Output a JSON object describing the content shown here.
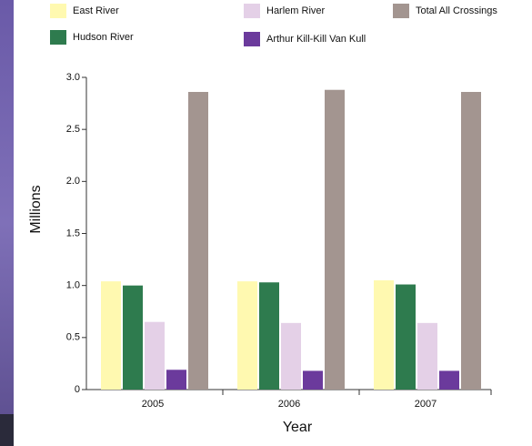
{
  "chart_data": {
    "type": "bar",
    "categories": [
      "2005",
      "2006",
      "2007"
    ],
    "series": [
      {
        "name": "East River",
        "color": "#fff9b0",
        "values": [
          1.04,
          1.04,
          1.05
        ]
      },
      {
        "name": "Hudson River",
        "color": "#2e7b4e",
        "values": [
          1.0,
          1.03,
          1.01
        ]
      },
      {
        "name": "Harlem River",
        "color": "#e4d0e7",
        "values": [
          0.65,
          0.64,
          0.64
        ]
      },
      {
        "name": "Arthur Kill-Kill Van Kull",
        "color": "#6b3a9c",
        "values": [
          0.19,
          0.18,
          0.18
        ]
      },
      {
        "name": "Total All Crossings",
        "color": "#a39590",
        "values": [
          2.86,
          2.88,
          2.86
        ]
      }
    ],
    "ylim": [
      0,
      3
    ],
    "yticks": [
      0,
      0.5,
      {
        "value": 1,
        "label": "1.0"
      },
      1.5,
      {
        "value": 2,
        "label": "2.0"
      },
      2.5,
      {
        "value": 3,
        "label": "3.0"
      }
    ],
    "y_label": "Millions",
    "x_label": "Year"
  }
}
